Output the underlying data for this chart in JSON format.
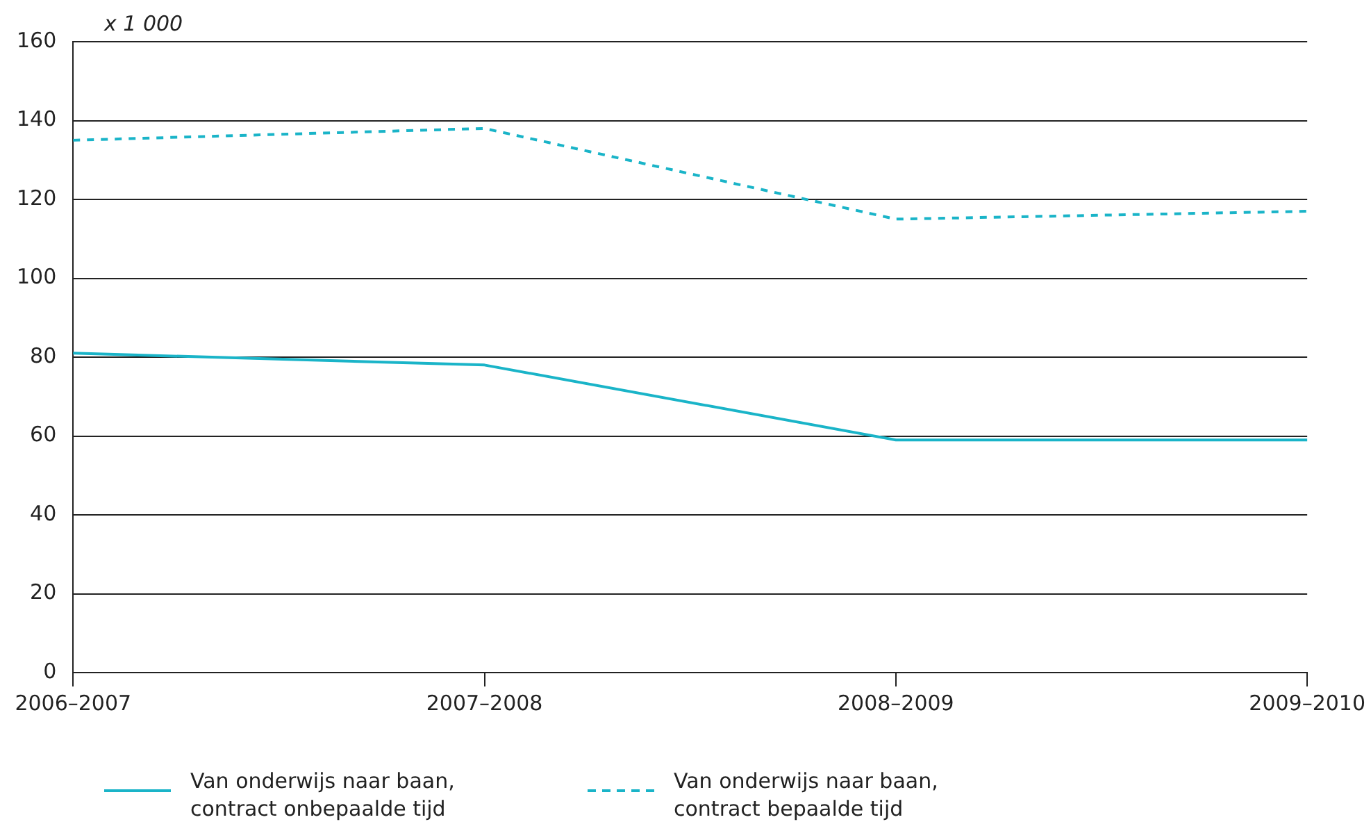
{
  "chart_data": {
    "type": "line",
    "ylabel": "x 1 000",
    "categories": [
      "2006–2007",
      "2007–2008",
      "2008–2009",
      "2009–2010"
    ],
    "series": [
      {
        "name": "Van onderwijs naar baan, contract onbepaalde tijd",
        "color": "#1ab4c8",
        "values": [
          81,
          78,
          59,
          59
        ],
        "line_style": "solid"
      },
      {
        "name": "Van onderwijs naar baan, contract bepaalde tijd",
        "color": "#1ab4c8",
        "values": [
          135,
          138,
          115,
          117
        ],
        "line_style": "dashed"
      }
    ],
    "ylim": [
      0,
      160
    ],
    "yticks": [
      0,
      20,
      40,
      60,
      80,
      100,
      120,
      140,
      160
    ],
    "grid": "y",
    "legend": "bottom left",
    "marker": "none"
  }
}
